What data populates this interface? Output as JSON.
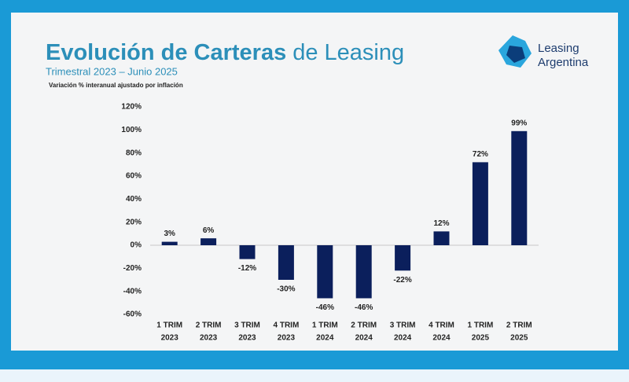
{
  "logo_text": [
    "Leasing",
    "Argentina"
  ],
  "chart_data": {
    "type": "bar",
    "title": [
      "Evolución de Carteras",
      "de Leasing"
    ],
    "subtitle": "Trimestral 2023 – Junio 2025",
    "y_label": "Variación % interanual ajustado por inflación",
    "categories": [
      [
        "1 TRIM",
        "2023"
      ],
      [
        "2 TRIM",
        "2023"
      ],
      [
        "3 TRIM",
        "2023"
      ],
      [
        "4 TRIM",
        "2023"
      ],
      [
        "1 TRIM",
        "2024"
      ],
      [
        "2 TRIM",
        "2024"
      ],
      [
        "3 TRIM",
        "2024"
      ],
      [
        "4 TRIM",
        "2024"
      ],
      [
        "1 TRIM",
        "2025"
      ],
      [
        "2 TRIM",
        "2025"
      ]
    ],
    "values": [
      3,
      6,
      -12,
      -30,
      -46,
      -46,
      -22,
      12,
      72,
      99
    ],
    "value_labels": [
      "3%",
      "6%",
      "-12%",
      "-30%",
      "-46%",
      "-46%",
      "-22%",
      "12%",
      "72%",
      "99%"
    ],
    "color": "#0b1f5c",
    "ylim": [
      -60,
      120
    ],
    "yticks": [
      {
        "value": 120,
        "label": "120%"
      },
      {
        "value": 100,
        "label": "100%"
      },
      {
        "value": 80,
        "label": "80%"
      },
      {
        "value": 60,
        "label": "60%"
      },
      {
        "value": 40,
        "label": "40%"
      },
      {
        "value": 20,
        "label": "20%"
      },
      {
        "value": 0,
        "label": "0%"
      },
      {
        "value": -20,
        "label": "-20%"
      },
      {
        "value": -40,
        "label": "-40%"
      },
      {
        "value": -60,
        "label": "-60%"
      }
    ],
    "grid": false
  }
}
